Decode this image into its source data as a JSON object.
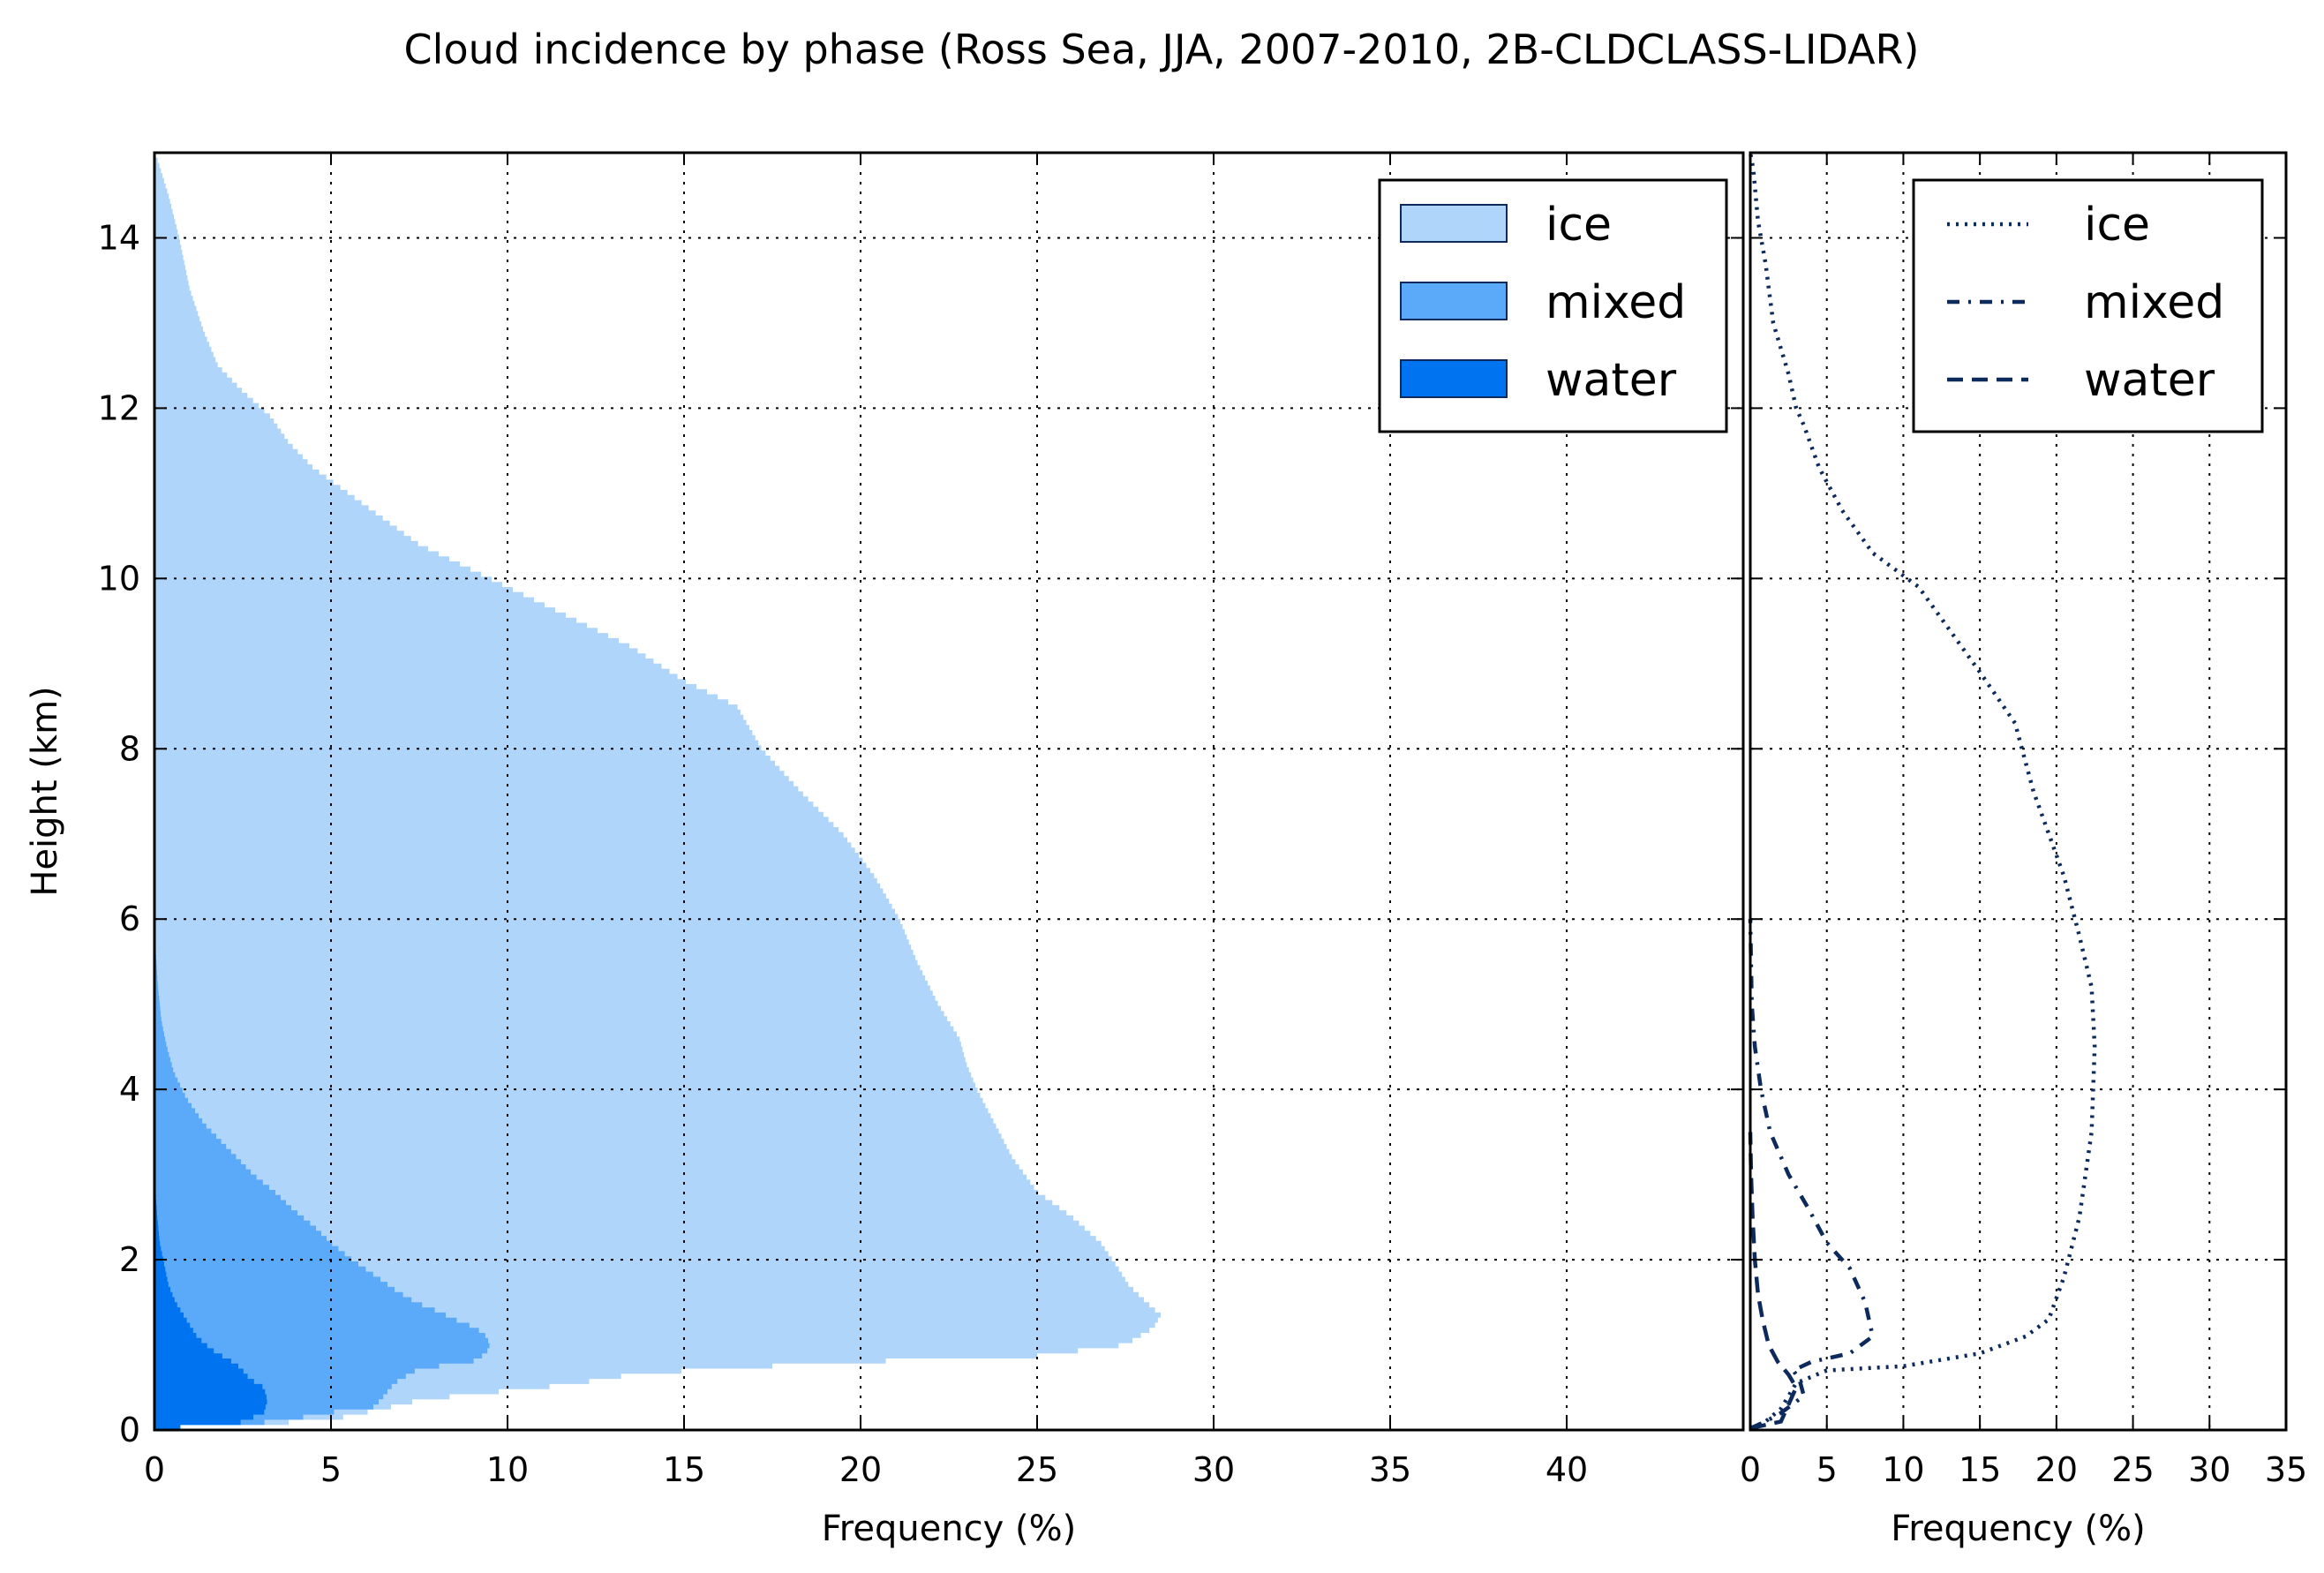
{
  "chart_data": [
    {
      "type": "area",
      "title": "Cloud incidence by phase (Ross Sea, JJA, 2007-2010, 2B-CLDCLASS-LIDAR)",
      "xlabel": "Frequency (%)",
      "ylabel": "Height (km)",
      "xlim": [
        0,
        45
      ],
      "ylim": [
        0,
        15
      ],
      "xticks": [
        "0",
        "5",
        "10",
        "15",
        "20",
        "25",
        "30",
        "35",
        "40"
      ],
      "yticks": [
        "0",
        "2",
        "4",
        "6",
        "8",
        "10",
        "12",
        "14"
      ],
      "grid": true,
      "legend_position": "top-right",
      "stacked": true,
      "series": [
        {
          "name": "water",
          "color": "#0073f0",
          "points": [
            [
              0,
              0.02
            ],
            [
              2.2,
              0.05
            ],
            [
              3.1,
              0.2
            ],
            [
              3.2,
              0.35
            ],
            [
              3.1,
              0.5
            ],
            [
              2.7,
              0.6
            ],
            [
              2.5,
              0.7
            ],
            [
              2.3,
              0.78
            ],
            [
              2.0,
              0.85
            ],
            [
              1.6,
              0.95
            ],
            [
              1.2,
              1.1
            ],
            [
              0.9,
              1.3
            ],
            [
              0.6,
              1.5
            ],
            [
              0.4,
              1.7
            ],
            [
              0.25,
              2.0
            ],
            [
              0.15,
              2.2
            ],
            [
              0.08,
              2.5
            ],
            [
              0.03,
              2.8
            ],
            [
              0,
              3.0
            ]
          ]
        },
        {
          "name": "mixed",
          "color": "#5aaaf9",
          "points": [
            [
              0,
              0.02
            ],
            [
              2.2,
              0.05
            ],
            [
              3.8,
              0.12
            ],
            [
              4.9,
              0.2
            ],
            [
              6.2,
              0.27
            ],
            [
              6.4,
              0.35
            ],
            [
              6.6,
              0.45
            ],
            [
              6.8,
              0.55
            ],
            [
              7.2,
              0.65
            ],
            [
              7.5,
              0.72
            ],
            [
              9.0,
              0.8
            ],
            [
              9.4,
              0.9
            ],
            [
              9.5,
              1.0
            ],
            [
              9.4,
              1.1
            ],
            [
              9.1,
              1.2
            ],
            [
              8.5,
              1.3
            ],
            [
              8.0,
              1.4
            ],
            [
              7.4,
              1.5
            ],
            [
              6.8,
              1.65
            ],
            [
              6.3,
              1.8
            ],
            [
              5.6,
              2.0
            ],
            [
              5.0,
              2.2
            ],
            [
              4.5,
              2.4
            ],
            [
              3.9,
              2.6
            ],
            [
              3.4,
              2.8
            ],
            [
              2.8,
              3.0
            ],
            [
              2.1,
              3.3
            ],
            [
              1.4,
              3.6
            ],
            [
              0.9,
              3.9
            ],
            [
              0.55,
              4.2
            ],
            [
              0.35,
              4.5
            ],
            [
              0.2,
              4.8
            ],
            [
              0.1,
              5.2
            ],
            [
              0.04,
              5.6
            ],
            [
              0,
              6.0
            ]
          ]
        },
        {
          "name": "ice",
          "color": "#b0d5fa",
          "points": [
            [
              0,
              0.02
            ],
            [
              2.2,
              0.05
            ],
            [
              5.0,
              0.12
            ],
            [
              6.5,
              0.25
            ],
            [
              7.5,
              0.35
            ],
            [
              9.0,
              0.42
            ],
            [
              11.0,
              0.5
            ],
            [
              12.5,
              0.58
            ],
            [
              13.5,
              0.65
            ],
            [
              16.0,
              0.72
            ],
            [
              20.0,
              0.8
            ],
            [
              25.0,
              0.87
            ],
            [
              27.5,
              1.0
            ],
            [
              28.3,
              1.2
            ],
            [
              28.5,
              1.35
            ],
            [
              28.1,
              1.5
            ],
            [
              27.6,
              1.7
            ],
            [
              27.3,
              1.9
            ],
            [
              26.8,
              2.2
            ],
            [
              26.0,
              2.5
            ],
            [
              25.0,
              2.8
            ],
            [
              24.3,
              3.2
            ],
            [
              23.8,
              3.6
            ],
            [
              23.3,
              4.0
            ],
            [
              23.0,
              4.3
            ],
            [
              22.8,
              4.6
            ],
            [
              22.2,
              5.0
            ],
            [
              21.6,
              5.5
            ],
            [
              21.1,
              6.0
            ],
            [
              20.4,
              6.5
            ],
            [
              19.5,
              7.0
            ],
            [
              18.3,
              7.5
            ],
            [
              17.2,
              8.0
            ],
            [
              16.5,
              8.5
            ],
            [
              15.0,
              8.8
            ],
            [
              13.5,
              9.2
            ],
            [
              12.0,
              9.5
            ],
            [
              10.5,
              9.8
            ],
            [
              9.0,
              10.1
            ],
            [
              7.5,
              10.4
            ],
            [
              6.5,
              10.7
            ],
            [
              5.5,
              11.0
            ],
            [
              4.5,
              11.3
            ],
            [
              3.8,
              11.6
            ],
            [
              3.3,
              11.9
            ],
            [
              2.5,
              12.2
            ],
            [
              1.8,
              12.5
            ],
            [
              1.4,
              12.9
            ],
            [
              1.0,
              13.4
            ],
            [
              0.7,
              14.0
            ],
            [
              0.4,
              14.5
            ],
            [
              0.1,
              14.9
            ],
            [
              0,
              15.0
            ]
          ]
        }
      ]
    },
    {
      "type": "line",
      "title": "",
      "xlabel": "Frequency (%)",
      "ylabel": "",
      "xlim": [
        0,
        35
      ],
      "ylim": [
        0,
        15
      ],
      "xticks": [
        "0",
        "5",
        "10",
        "15",
        "20",
        "25",
        "30",
        "35"
      ],
      "grid": true,
      "legend_position": "top-right",
      "series": [
        {
          "name": "ice",
          "style": "dotted",
          "color": "#0d2a5c",
          "points": [
            [
              0,
              0.02
            ],
            [
              1.0,
              0.1
            ],
            [
              2.0,
              0.25
            ],
            [
              2.5,
              0.4
            ],
            [
              3.0,
              0.55
            ],
            [
              5.0,
              0.7
            ],
            [
              10.0,
              0.75
            ],
            [
              15.0,
              0.9
            ],
            [
              18.0,
              1.1
            ],
            [
              19.5,
              1.3
            ],
            [
              20.5,
              1.8
            ],
            [
              21.5,
              2.5
            ],
            [
              22.3,
              3.5
            ],
            [
              22.5,
              4.5
            ],
            [
              22.3,
              5.2
            ],
            [
              21.5,
              5.8
            ],
            [
              20.5,
              6.5
            ],
            [
              19.5,
              7.0
            ],
            [
              18.5,
              7.5
            ],
            [
              17.3,
              8.3
            ],
            [
              15.0,
              8.9
            ],
            [
              13.0,
              9.4
            ],
            [
              11.0,
              9.9
            ],
            [
              8.0,
              10.3
            ],
            [
              6.0,
              10.8
            ],
            [
              4.5,
              11.3
            ],
            [
              3.5,
              11.8
            ],
            [
              3.0,
              12.0
            ],
            [
              2.5,
              12.4
            ],
            [
              1.5,
              13.0
            ],
            [
              1.0,
              13.7
            ],
            [
              0.5,
              14.2
            ],
            [
              0.2,
              14.8
            ],
            [
              0,
              15.0
            ]
          ]
        },
        {
          "name": "mixed",
          "style": "dashdot",
          "color": "#0d2a5c",
          "points": [
            [
              0,
              0.02
            ],
            [
              1.0,
              0.1
            ],
            [
              2.0,
              0.2
            ],
            [
              3.5,
              0.4
            ],
            [
              3.2,
              0.6
            ],
            [
              2.8,
              0.7
            ],
            [
              4.0,
              0.8
            ],
            [
              6.5,
              0.9
            ],
            [
              8.0,
              1.1
            ],
            [
              7.5,
              1.5
            ],
            [
              6.5,
              1.9
            ],
            [
              5.0,
              2.2
            ],
            [
              3.8,
              2.6
            ],
            [
              2.5,
              3.0
            ],
            [
              1.3,
              3.5
            ],
            [
              0.7,
              4.0
            ],
            [
              0.3,
              4.5
            ],
            [
              0.1,
              5.0
            ],
            [
              0,
              6.0
            ]
          ]
        },
        {
          "name": "water",
          "style": "dashed",
          "color": "#0d2a5c",
          "points": [
            [
              0,
              0.02
            ],
            [
              2.0,
              0.1
            ],
            [
              2.5,
              0.3
            ],
            [
              3.0,
              0.5
            ],
            [
              2.5,
              0.65
            ],
            [
              1.8,
              0.8
            ],
            [
              1.2,
              1.0
            ],
            [
              0.8,
              1.3
            ],
            [
              0.5,
              1.6
            ],
            [
              0.3,
              2.0
            ],
            [
              0.15,
              2.5
            ],
            [
              0.05,
              3.0
            ],
            [
              0,
              3.5
            ]
          ]
        }
      ]
    }
  ]
}
